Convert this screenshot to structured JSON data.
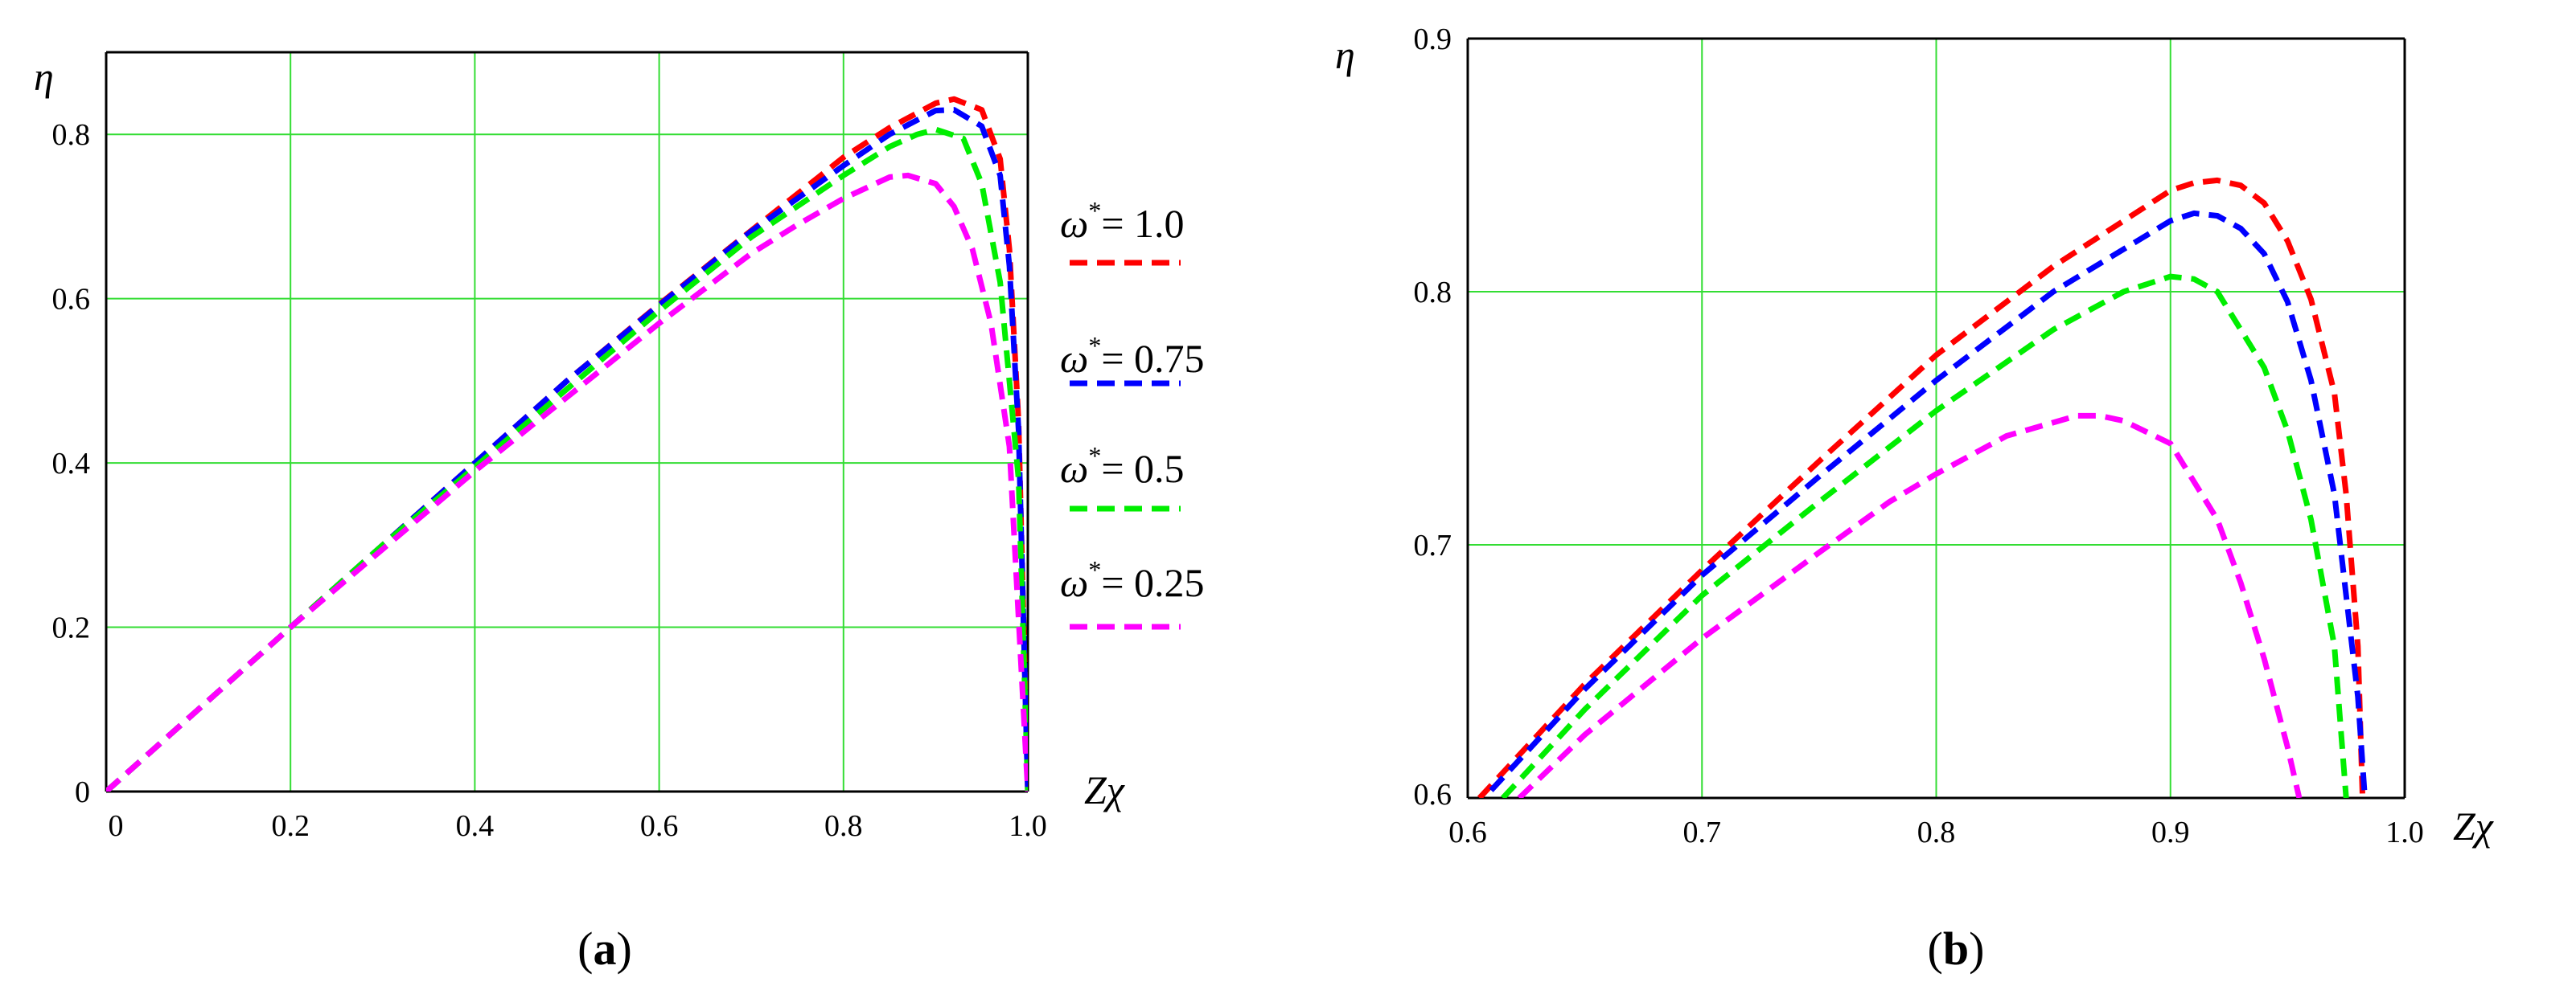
{
  "chart_data": [
    {
      "type": "line",
      "panel_label": "a",
      "xlabel": "Zχ",
      "ylabel": "η",
      "xlim": [
        0,
        1.0
      ],
      "ylim": [
        0,
        0.9
      ],
      "xticks": [
        "0",
        "0.2",
        "0.4",
        "0.6",
        "0.8",
        "1.0"
      ],
      "yticks": [
        "0",
        "0.2",
        "0.4",
        "0.6",
        "0.8"
      ],
      "grid": true,
      "legend_position": "right",
      "series": [
        {
          "name": "ω*= 1.0",
          "symbol": "ω",
          "sup": "*",
          "value_text": "= 1.0",
          "color": "#ff0000",
          "x": [
            0,
            0.1,
            0.2,
            0.3,
            0.4,
            0.5,
            0.6,
            0.7,
            0.8,
            0.85,
            0.9,
            0.92,
            0.95,
            0.97,
            0.98,
            0.99,
            1.0
          ],
          "y": [
            0,
            0.1,
            0.2,
            0.3,
            0.4,
            0.5,
            0.593,
            0.683,
            0.772,
            0.808,
            0.838,
            0.843,
            0.83,
            0.77,
            0.66,
            0.45,
            0
          ]
        },
        {
          "name": "ω*= 0.75",
          "symbol": "ω",
          "sup": "*",
          "value_text": "= 0.75",
          "color": "#0000ff",
          "x": [
            0,
            0.1,
            0.2,
            0.3,
            0.4,
            0.5,
            0.6,
            0.7,
            0.8,
            0.85,
            0.9,
            0.92,
            0.95,
            0.97,
            0.98,
            0.99,
            1.0
          ],
          "y": [
            0,
            0.1,
            0.2,
            0.3,
            0.4,
            0.5,
            0.592,
            0.682,
            0.762,
            0.8,
            0.829,
            0.83,
            0.81,
            0.75,
            0.64,
            0.44,
            0
          ]
        },
        {
          "name": "ω*= 0.5",
          "symbol": "ω",
          "sup": "*",
          "value_text": "= 0.5",
          "color": "#00ee00",
          "x": [
            0,
            0.1,
            0.2,
            0.3,
            0.4,
            0.5,
            0.6,
            0.7,
            0.8,
            0.85,
            0.88,
            0.9,
            0.93,
            0.95,
            0.97,
            0.99,
            1.0
          ],
          "y": [
            0,
            0.1,
            0.2,
            0.3,
            0.395,
            0.49,
            0.585,
            0.675,
            0.75,
            0.785,
            0.8,
            0.806,
            0.795,
            0.74,
            0.62,
            0.38,
            0
          ]
        },
        {
          "name": "ω*= 0.25",
          "symbol": "ω",
          "sup": "*",
          "value_text": "= 0.25",
          "color": "#ff00ff",
          "x": [
            0,
            0.1,
            0.2,
            0.3,
            0.4,
            0.5,
            0.6,
            0.7,
            0.75,
            0.8,
            0.85,
            0.87,
            0.9,
            0.92,
            0.94,
            0.96,
            0.98,
            1.0
          ],
          "y": [
            0,
            0.1,
            0.2,
            0.295,
            0.39,
            0.48,
            0.57,
            0.655,
            0.69,
            0.722,
            0.748,
            0.75,
            0.74,
            0.712,
            0.66,
            0.57,
            0.42,
            0
          ]
        }
      ]
    },
    {
      "type": "line",
      "panel_label": "b",
      "xlabel": "Zχ",
      "ylabel": "η",
      "xlim": [
        0.6,
        1.0
      ],
      "ylim": [
        0.6,
        0.9
      ],
      "xticks": [
        "0.6",
        "0.7",
        "0.8",
        "0.9",
        "1.0"
      ],
      "yticks": [
        "0.6",
        "0.7",
        "0.8",
        "0.9"
      ],
      "grid": true,
      "series": [
        {
          "name": "ω*= 1.0",
          "color": "#ff0000",
          "x": [
            0.605,
            0.65,
            0.7,
            0.75,
            0.8,
            0.85,
            0.9,
            0.91,
            0.92,
            0.93,
            0.94,
            0.95,
            0.96,
            0.97,
            0.975,
            0.98,
            0.982
          ],
          "y": [
            0.6,
            0.645,
            0.69,
            0.733,
            0.775,
            0.81,
            0.84,
            0.843,
            0.844,
            0.842,
            0.835,
            0.82,
            0.797,
            0.76,
            0.72,
            0.66,
            0.6
          ]
        },
        {
          "name": "ω*= 0.75",
          "color": "#0000ff",
          "x": [
            0.61,
            0.65,
            0.7,
            0.75,
            0.8,
            0.85,
            0.9,
            0.91,
            0.92,
            0.93,
            0.94,
            0.95,
            0.96,
            0.97,
            0.98,
            0.983
          ],
          "y": [
            0.603,
            0.643,
            0.688,
            0.727,
            0.765,
            0.8,
            0.828,
            0.831,
            0.83,
            0.825,
            0.815,
            0.796,
            0.765,
            0.72,
            0.64,
            0.6
          ]
        },
        {
          "name": "ω*= 0.5",
          "color": "#00ee00",
          "x": [
            0.615,
            0.65,
            0.7,
            0.75,
            0.8,
            0.85,
            0.88,
            0.9,
            0.91,
            0.92,
            0.94,
            0.95,
            0.96,
            0.97,
            0.975
          ],
          "y": [
            0.6,
            0.635,
            0.68,
            0.717,
            0.753,
            0.785,
            0.8,
            0.806,
            0.805,
            0.8,
            0.77,
            0.745,
            0.71,
            0.66,
            0.6
          ]
        },
        {
          "name": "ω*= 0.25",
          "color": "#ff00ff",
          "x": [
            0.622,
            0.65,
            0.7,
            0.75,
            0.78,
            0.8,
            0.83,
            0.86,
            0.87,
            0.88,
            0.9,
            0.92,
            0.93,
            0.94,
            0.95,
            0.955
          ],
          "y": [
            0.6,
            0.625,
            0.663,
            0.697,
            0.717,
            0.728,
            0.743,
            0.751,
            0.751,
            0.749,
            0.74,
            0.71,
            0.685,
            0.655,
            0.62,
            0.6
          ]
        }
      ]
    }
  ]
}
